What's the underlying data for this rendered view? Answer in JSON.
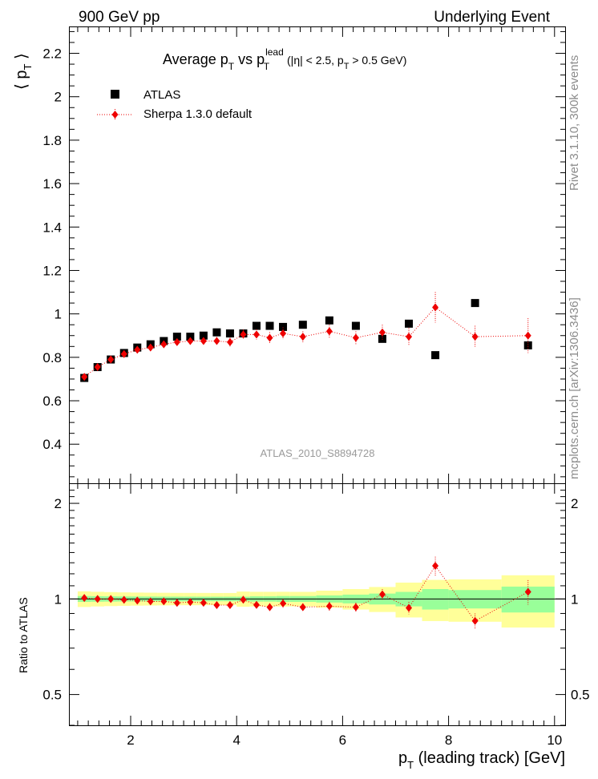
{
  "header": {
    "left": "900 GeV pp",
    "right": "Underlying Event"
  },
  "side": {
    "rivet": "Rivet 3.1.10,  300k events",
    "mcplots": "mcplots.cern.ch [arXiv:1306.3436]"
  },
  "chart_data": {
    "type": "scatter",
    "title_parts": {
      "main": "Average p",
      "main_sub": "T",
      "vs": " vs p",
      "lead_sup": "lead",
      "lead_sub": "T",
      "cut1": " (|η| < 2.5, p",
      "cut_sub": "T",
      "cut2": " > 0.5 GeV)"
    },
    "analysis_id": "ATLAS_2010_S8894728",
    "ylabel_parts": {
      "open": "⟨ p",
      "sub": "T",
      "close": " ⟩"
    },
    "ratio_ylabel": "Ratio to ATLAS",
    "xlabel_parts": {
      "p": "p",
      "sub": "T",
      "rest": " (leading track) [GeV]"
    },
    "xlim": [
      0.85,
      10.2
    ],
    "ylim": [
      0.22,
      2.32
    ],
    "ratio_ylim": [
      0.4,
      2.3
    ],
    "x_ticks": [
      2,
      4,
      6,
      8,
      10
    ],
    "x_tick_labels": [
      "2",
      "4",
      "6",
      "8",
      "10"
    ],
    "y_ticks": [
      0.4,
      0.6,
      0.8,
      1.0,
      1.2,
      1.4,
      1.6,
      1.8,
      2.0,
      2.2
    ],
    "y_tick_labels": [
      "0.4",
      "0.6",
      "0.8",
      "1",
      "1.2",
      "1.4",
      "1.6",
      "1.8",
      "2",
      "2.2"
    ],
    "ratio_y_ticks": [
      0.5,
      1,
      2
    ],
    "ratio_y_tick_labels": [
      "0.5",
      "1",
      "2"
    ],
    "legend": {
      "position": "top-left",
      "entries": [
        "ATLAS",
        "Sherpa 1.3.0 default"
      ]
    },
    "data_series": {
      "name": "ATLAS",
      "bins": [
        {
          "lo": 1.0,
          "hi": 1.25,
          "x": 1.125,
          "y": 0.705,
          "tot": 0.04,
          "stat": 0.015
        },
        {
          "lo": 1.25,
          "hi": 1.5,
          "x": 1.375,
          "y": 0.755,
          "tot": 0.04,
          "stat": 0.015
        },
        {
          "lo": 1.5,
          "hi": 1.75,
          "x": 1.625,
          "y": 0.79,
          "tot": 0.04,
          "stat": 0.015
        },
        {
          "lo": 1.75,
          "hi": 2.0,
          "x": 1.875,
          "y": 0.82,
          "tot": 0.04,
          "stat": 0.015
        },
        {
          "lo": 2.0,
          "hi": 2.25,
          "x": 2.125,
          "y": 0.845,
          "tot": 0.04,
          "stat": 0.015
        },
        {
          "lo": 2.25,
          "hi": 2.5,
          "x": 2.375,
          "y": 0.86,
          "tot": 0.04,
          "stat": 0.015
        },
        {
          "lo": 2.5,
          "hi": 2.75,
          "x": 2.625,
          "y": 0.875,
          "tot": 0.04,
          "stat": 0.015
        },
        {
          "lo": 2.75,
          "hi": 3.0,
          "x": 2.875,
          "y": 0.895,
          "tot": 0.04,
          "stat": 0.015
        },
        {
          "lo": 3.0,
          "hi": 3.25,
          "x": 3.125,
          "y": 0.895,
          "tot": 0.04,
          "stat": 0.015
        },
        {
          "lo": 3.25,
          "hi": 3.5,
          "x": 3.375,
          "y": 0.9,
          "tot": 0.04,
          "stat": 0.015
        },
        {
          "lo": 3.5,
          "hi": 3.75,
          "x": 3.625,
          "y": 0.915,
          "tot": 0.04,
          "stat": 0.015
        },
        {
          "lo": 3.75,
          "hi": 4.0,
          "x": 3.875,
          "y": 0.91,
          "tot": 0.04,
          "stat": 0.015
        },
        {
          "lo": 4.0,
          "hi": 4.25,
          "x": 4.125,
          "y": 0.91,
          "tot": 0.05,
          "stat": 0.015
        },
        {
          "lo": 4.25,
          "hi": 4.5,
          "x": 4.375,
          "y": 0.945,
          "tot": 0.05,
          "stat": 0.018
        },
        {
          "lo": 4.5,
          "hi": 4.75,
          "x": 4.625,
          "y": 0.945,
          "tot": 0.05,
          "stat": 0.018
        },
        {
          "lo": 4.75,
          "hi": 5.0,
          "x": 4.875,
          "y": 0.94,
          "tot": 0.05,
          "stat": 0.02
        },
        {
          "lo": 5.0,
          "hi": 5.5,
          "x": 5.25,
          "y": 0.95,
          "tot": 0.05,
          "stat": 0.02
        },
        {
          "lo": 5.5,
          "hi": 6.0,
          "x": 5.75,
          "y": 0.97,
          "tot": 0.06,
          "stat": 0.025
        },
        {
          "lo": 6.0,
          "hi": 6.5,
          "x": 6.25,
          "y": 0.945,
          "tot": 0.07,
          "stat": 0.03
        },
        {
          "lo": 6.5,
          "hi": 7.0,
          "x": 6.75,
          "y": 0.885,
          "tot": 0.08,
          "stat": 0.035
        },
        {
          "lo": 7.0,
          "hi": 7.5,
          "x": 7.25,
          "y": 0.955,
          "tot": 0.12,
          "stat": 0.05
        },
        {
          "lo": 7.5,
          "hi": 8.0,
          "x": 7.75,
          "y": 0.81,
          "tot": 0.12,
          "stat": 0.06
        },
        {
          "lo": 8.0,
          "hi": 9.0,
          "x": 8.5,
          "y": 1.05,
          "tot": 0.16,
          "stat": 0.07
        },
        {
          "lo": 9.0,
          "hi": 10.0,
          "x": 9.5,
          "y": 0.855,
          "tot": 0.16,
          "stat": 0.08
        }
      ]
    },
    "mc_series": {
      "name": "Sherpa 1.3.0 default",
      "color": "#ee0000",
      "points": [
        {
          "x": 1.125,
          "y": 0.71,
          "err": 0.012
        },
        {
          "x": 1.375,
          "y": 0.755,
          "err": 0.012
        },
        {
          "x": 1.625,
          "y": 0.79,
          "err": 0.012
        },
        {
          "x": 1.875,
          "y": 0.815,
          "err": 0.013
        },
        {
          "x": 2.125,
          "y": 0.835,
          "err": 0.013
        },
        {
          "x": 2.375,
          "y": 0.845,
          "err": 0.014
        },
        {
          "x": 2.625,
          "y": 0.86,
          "err": 0.015
        },
        {
          "x": 2.875,
          "y": 0.87,
          "err": 0.015
        },
        {
          "x": 3.125,
          "y": 0.875,
          "err": 0.016
        },
        {
          "x": 3.375,
          "y": 0.875,
          "err": 0.017
        },
        {
          "x": 3.625,
          "y": 0.875,
          "err": 0.018
        },
        {
          "x": 3.875,
          "y": 0.87,
          "err": 0.02
        },
        {
          "x": 4.125,
          "y": 0.905,
          "err": 0.022
        },
        {
          "x": 4.375,
          "y": 0.905,
          "err": 0.024
        },
        {
          "x": 4.625,
          "y": 0.89,
          "err": 0.026
        },
        {
          "x": 4.875,
          "y": 0.91,
          "err": 0.028
        },
        {
          "x": 5.25,
          "y": 0.895,
          "err": 0.025
        },
        {
          "x": 5.75,
          "y": 0.92,
          "err": 0.03
        },
        {
          "x": 6.25,
          "y": 0.89,
          "err": 0.03
        },
        {
          "x": 6.75,
          "y": 0.915,
          "err": 0.035
        },
        {
          "x": 7.25,
          "y": 0.895,
          "err": 0.04
        },
        {
          "x": 7.75,
          "y": 1.03,
          "err": 0.07
        },
        {
          "x": 8.5,
          "y": 0.895,
          "err": 0.05
        },
        {
          "x": 9.5,
          "y": 0.9,
          "err": 0.08
        }
      ]
    }
  }
}
